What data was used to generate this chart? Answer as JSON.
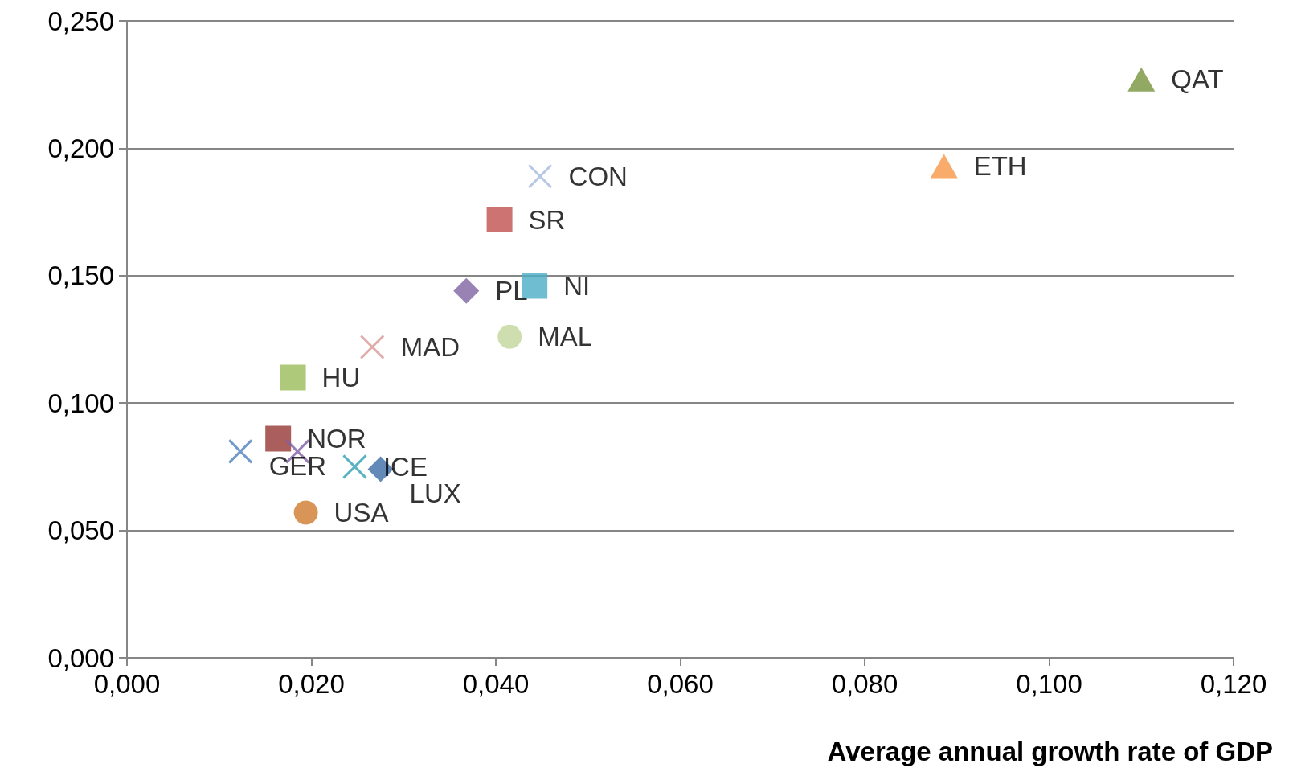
{
  "chart_data": {
    "type": "scatter",
    "xlabel": "Average annual growth rate of GDP",
    "xlim": [
      0,
      0.12
    ],
    "xticks": [
      {
        "value": 0,
        "label": "0,000"
      },
      {
        "value": 0.02,
        "label": "0,020"
      },
      {
        "value": 0.04,
        "label": "0,040"
      },
      {
        "value": 0.06,
        "label": "0,060"
      },
      {
        "value": 0.08,
        "label": "0,080"
      },
      {
        "value": 0.1,
        "label": "0,100"
      },
      {
        "value": 0.12,
        "label": "0,120"
      }
    ],
    "ylim": [
      0,
      0.25
    ],
    "yticks": [
      {
        "value": 0,
        "label": "0,000"
      },
      {
        "value": 0.05,
        "label": "0,050"
      },
      {
        "value": 0.1,
        "label": "0,100"
      },
      {
        "value": 0.15,
        "label": "0,150"
      },
      {
        "value": 0.2,
        "label": "0,200"
      },
      {
        "value": 0.25,
        "label": "0,250"
      }
    ],
    "grid": "y",
    "series": [
      {
        "name": "QAT",
        "color": "#77933c",
        "marker": "triangle",
        "x": [
          0.11
        ],
        "values": [
          0.227
        ]
      },
      {
        "name": "ETH",
        "color": "#f79646",
        "marker": "triangle",
        "x": [
          0.0886
        ],
        "values": [
          0.193
        ]
      },
      {
        "name": "CON",
        "color": "#a6b9dc",
        "marker": "cross",
        "x": [
          0.0448
        ],
        "values": [
          0.189
        ]
      },
      {
        "name": "SR",
        "color": "#c0504d",
        "marker": "square",
        "x": [
          0.0404
        ],
        "values": [
          0.172
        ]
      },
      {
        "name": "NI",
        "color": "#4bacc6",
        "marker": "square",
        "x": [
          0.0442
        ],
        "values": [
          0.146
        ]
      },
      {
        "name": "PL",
        "color": "#8064a2",
        "marker": "diamond",
        "x": [
          0.0368
        ],
        "values": [
          0.144
        ]
      },
      {
        "name": "MAL",
        "color": "#c3d69b",
        "marker": "circle",
        "x": [
          0.0415
        ],
        "values": [
          0.126
        ]
      },
      {
        "name": "MAD",
        "color": "#d99694",
        "marker": "cross",
        "x": [
          0.0266
        ],
        "values": [
          0.122
        ]
      },
      {
        "name": "HU",
        "color": "#9bbb59",
        "marker": "square",
        "x": [
          0.018
        ],
        "values": [
          0.11
        ]
      },
      {
        "name": "NOR",
        "color": "#953735",
        "marker": "square",
        "x": [
          0.0164
        ],
        "values": [
          0.086
        ]
      },
      {
        "color": "#7f5fa8",
        "marker": "cross",
        "x": [
          0.0185
        ],
        "values": [
          0.081
        ]
      },
      {
        "name": "GER",
        "color": "#4f81bd",
        "marker": "cross",
        "x": [
          0.0123
        ],
        "values": [
          0.081
        ]
      },
      {
        "name": "ICE",
        "color": "#31a0b3",
        "marker": "cross",
        "x": [
          0.0247
        ],
        "values": [
          0.075
        ]
      },
      {
        "name": "LUX",
        "color": "#3c6ca8",
        "marker": "diamond",
        "x": [
          0.0275
        ],
        "values": [
          0.074
        ]
      },
      {
        "name": "USA",
        "color": "#d07a2e",
        "marker": "circle",
        "x": [
          0.0194
        ],
        "values": [
          0.057
        ]
      }
    ]
  }
}
